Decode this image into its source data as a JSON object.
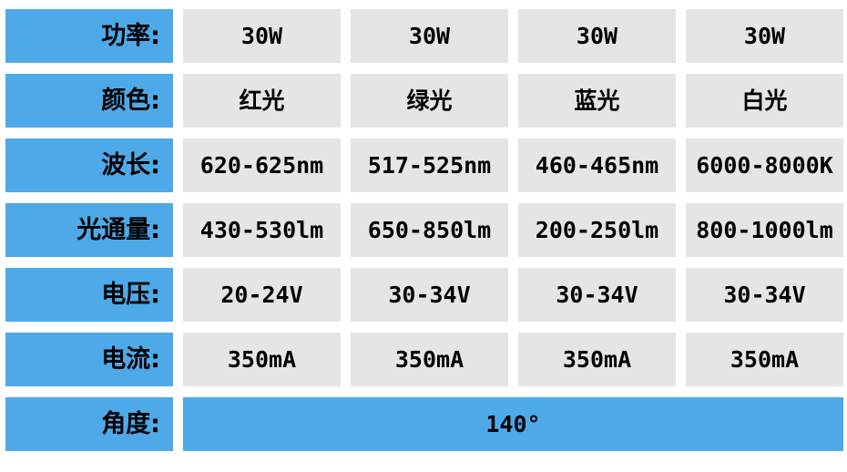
{
  "colors": {
    "label_background": "#4DA9E8",
    "value_background": "#E5E5E5",
    "span_value_background": "#4DA9E8",
    "text": "#000000",
    "page_background": "#FFFFFF"
  },
  "chart_data": {
    "type": "table",
    "title": "",
    "rows": [
      {
        "label": "功率:",
        "values": [
          "30W",
          "30W",
          "30W",
          "30W"
        ]
      },
      {
        "label": "颜色:",
        "values": [
          "红光",
          "绿光",
          "蓝光",
          "白光"
        ]
      },
      {
        "label": "波长:",
        "values": [
          "620-625nm",
          "517-525nm",
          "460-465nm",
          "6000-8000K"
        ]
      },
      {
        "label": "光通量:",
        "values": [
          "430-530lm",
          "650-850lm",
          "200-250lm",
          "800-1000lm"
        ]
      },
      {
        "label": "电压:",
        "values": [
          "20-24V",
          "30-34V",
          "30-34V",
          "30-34V"
        ]
      },
      {
        "label": "电流:",
        "values": [
          "350mA",
          "350mA",
          "350mA",
          "350mA"
        ]
      },
      {
        "label": "角度:",
        "values": [
          "140°"
        ],
        "colspan": 4
      }
    ]
  }
}
